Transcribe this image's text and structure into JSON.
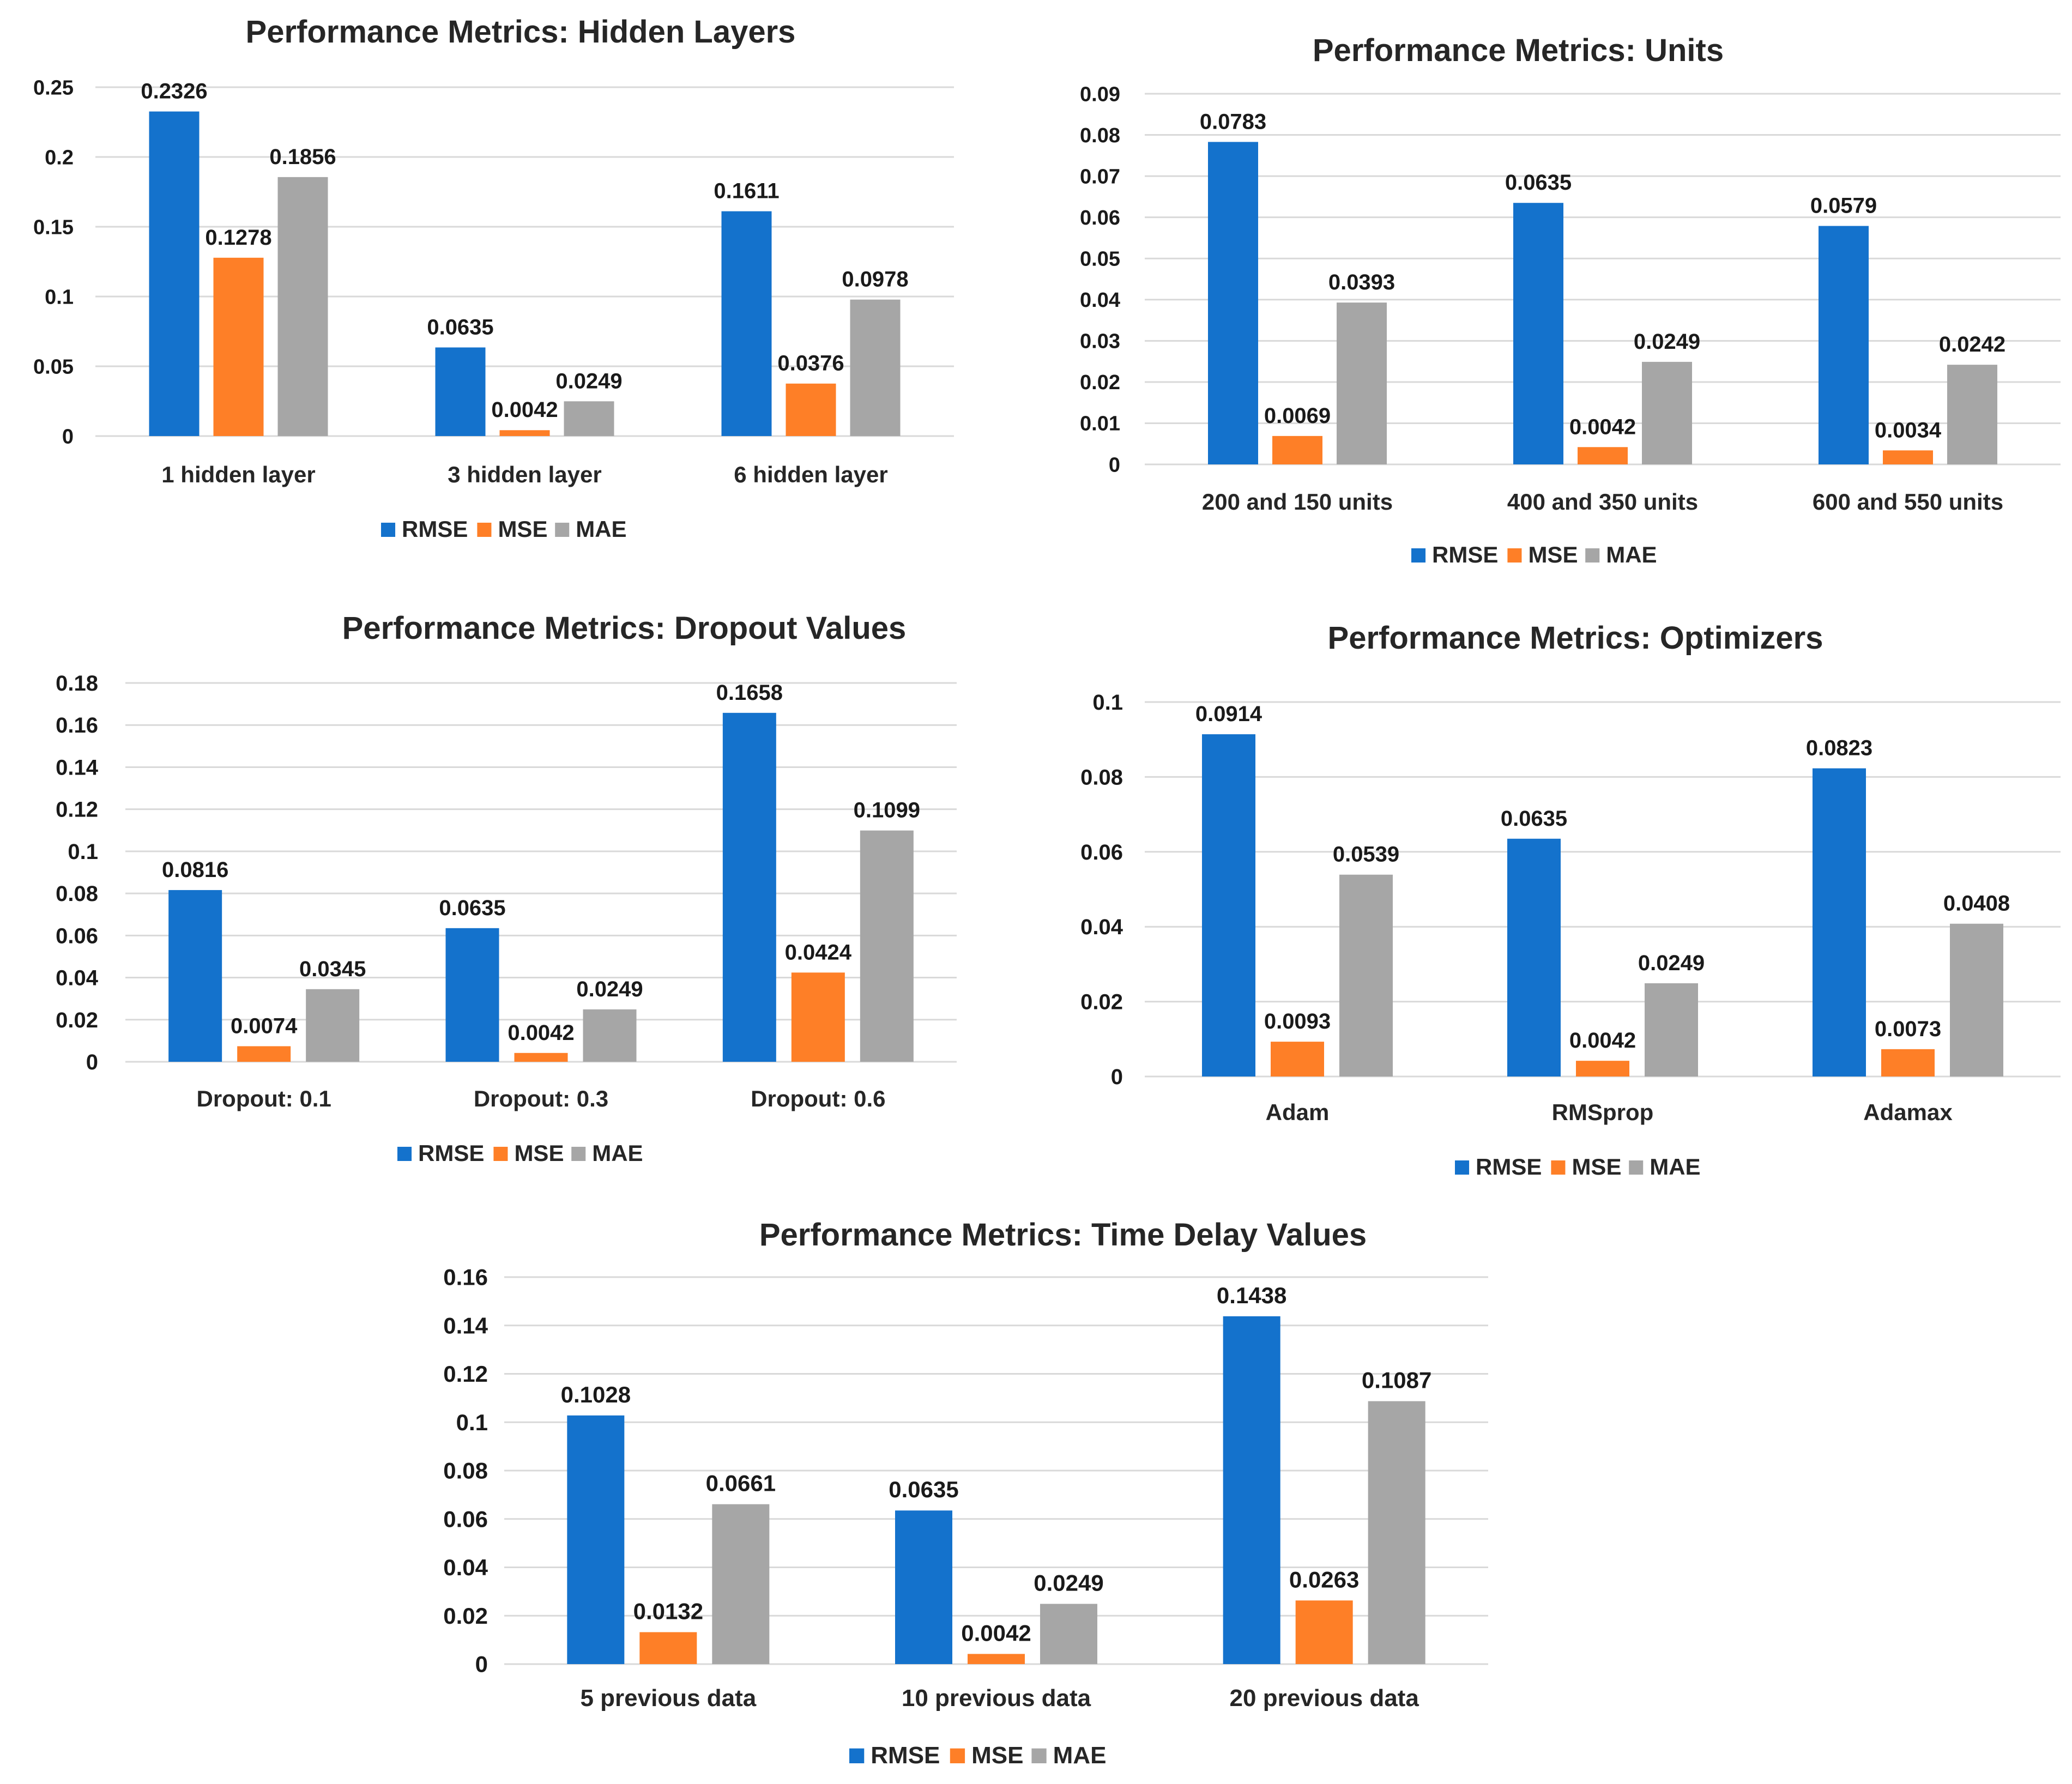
{
  "series_colors": {
    "RMSE": "#1472cc",
    "MSE": "#fe7f27",
    "MAE": "#a6a6a6"
  },
  "chart_data": [
    {
      "id": "hidden-layers",
      "type": "bar",
      "title": "Performance Metrics: Hidden Layers",
      "categories": [
        "1 hidden layer",
        "3 hidden layer",
        "6 hidden layer"
      ],
      "series": [
        {
          "name": "RMSE",
          "values": [
            0.2326,
            0.0635,
            0.1611
          ]
        },
        {
          "name": "MSE",
          "values": [
            0.1278,
            0.0042,
            0.0376
          ]
        },
        {
          "name": "MAE",
          "values": [
            0.1856,
            0.0249,
            0.0978
          ]
        }
      ],
      "value_labels": {
        "RMSE": [
          "0.2326",
          "0.0635",
          "0.1611"
        ],
        "MSE": [
          "0.1278",
          "0.0042",
          "0.0376"
        ],
        "MAE": [
          "0.1856",
          "0.0249",
          "0.0978"
        ]
      },
      "ylim": [
        0,
        0.25
      ],
      "yticks": [
        0,
        0.05,
        0.1,
        0.15,
        0.2,
        0.25
      ],
      "ytick_labels": [
        "0",
        "0.05",
        "0.1",
        "0.15",
        "0.2",
        "0.25"
      ],
      "xlabel": "",
      "ylabel": "",
      "grid": true,
      "legend": "bottom-center"
    },
    {
      "id": "units",
      "type": "bar",
      "title": "Performance Metrics: Units",
      "categories": [
        "200 and 150 units",
        "400 and 350 units",
        "600 and 550 units"
      ],
      "series": [
        {
          "name": "RMSE",
          "values": [
            0.0783,
            0.0635,
            0.0579
          ]
        },
        {
          "name": "MSE",
          "values": [
            0.0069,
            0.0042,
            0.0034
          ]
        },
        {
          "name": "MAE",
          "values": [
            0.0393,
            0.0249,
            0.0242
          ]
        }
      ],
      "value_labels": {
        "RMSE": [
          "0.0783",
          "0.0635",
          "0.0579"
        ],
        "MSE": [
          "0.0069",
          "0.0042",
          "0.0034"
        ],
        "MAE": [
          "0.0393",
          "0.0249",
          "0.0242"
        ]
      },
      "ylim": [
        0,
        0.09
      ],
      "yticks": [
        0,
        0.01,
        0.02,
        0.03,
        0.04,
        0.05,
        0.06,
        0.07,
        0.08,
        0.09
      ],
      "ytick_labels": [
        "0",
        "0.01",
        "0.02",
        "0.03",
        "0.04",
        "0.05",
        "0.06",
        "0.07",
        "0.08",
        "0.09"
      ],
      "xlabel": "",
      "ylabel": "",
      "grid": true,
      "legend": "bottom-center"
    },
    {
      "id": "dropout",
      "type": "bar",
      "title": "Performance Metrics: Dropout Values",
      "categories": [
        "Dropout: 0.1",
        "Dropout: 0.3",
        "Dropout: 0.6"
      ],
      "series": [
        {
          "name": "RMSE",
          "values": [
            0.0816,
            0.0635,
            0.1658
          ]
        },
        {
          "name": "MSE",
          "values": [
            0.0074,
            0.0042,
            0.0424
          ]
        },
        {
          "name": "MAE",
          "values": [
            0.0345,
            0.0249,
            0.1099
          ]
        }
      ],
      "value_labels": {
        "RMSE": [
          "0.0816",
          "0.0635",
          "0.1658"
        ],
        "MSE": [
          "0.0074",
          "0.0042",
          "0.0424"
        ],
        "MAE": [
          "0.0345",
          "0.0249",
          "0.1099"
        ]
      },
      "ylim": [
        0,
        0.18
      ],
      "yticks": [
        0,
        0.02,
        0.04,
        0.06,
        0.08,
        0.1,
        0.12,
        0.14,
        0.16,
        0.18
      ],
      "ytick_labels": [
        "0",
        "0.02",
        "0.04",
        "0.06",
        "0.08",
        "0.1",
        "0.12",
        "0.14",
        "0.16",
        "0.18"
      ],
      "xlabel": "",
      "ylabel": "",
      "grid": true,
      "legend": "bottom-center"
    },
    {
      "id": "optimizers",
      "type": "bar",
      "title": "Performance Metrics: Optimizers",
      "categories": [
        "Adam",
        "RMSprop",
        "Adamax"
      ],
      "series": [
        {
          "name": "RMSE",
          "values": [
            0.0914,
            0.0635,
            0.0823
          ]
        },
        {
          "name": "MSE",
          "values": [
            0.0093,
            0.0042,
            0.0073
          ]
        },
        {
          "name": "MAE",
          "values": [
            0.0539,
            0.0249,
            0.0408
          ]
        }
      ],
      "value_labels": {
        "RMSE": [
          "0.0914",
          "0.0635",
          "0.0823"
        ],
        "MSE": [
          "0.0093",
          "0.0042",
          "0.0073"
        ],
        "MAE": [
          "0.0539",
          "0.0249",
          "0.0408"
        ]
      },
      "ylim": [
        0,
        0.1
      ],
      "yticks": [
        0,
        0.02,
        0.04,
        0.06,
        0.08,
        0.1
      ],
      "ytick_labels": [
        "0",
        "0.02",
        "0.04",
        "0.06",
        "0.08",
        "0.1"
      ],
      "xlabel": "",
      "ylabel": "",
      "grid": true,
      "legend": "bottom-center"
    },
    {
      "id": "time-delay",
      "type": "bar",
      "title": "Performance Metrics: Time Delay Values",
      "categories": [
        "5 previous data",
        "10 previous data",
        "20 previous data"
      ],
      "series": [
        {
          "name": "RMSE",
          "values": [
            0.1028,
            0.0635,
            0.1438
          ]
        },
        {
          "name": "MSE",
          "values": [
            0.0132,
            0.0042,
            0.0263
          ]
        },
        {
          "name": "MAE",
          "values": [
            0.0661,
            0.0249,
            0.1087
          ]
        }
      ],
      "value_labels": {
        "RMSE": [
          "0.1028",
          "0.0635",
          "0.1438"
        ],
        "MSE": [
          "0.0132",
          "0.0042",
          "0.0263"
        ],
        "MAE": [
          "0.0661",
          "0.0249",
          "0.1087"
        ]
      },
      "ylim": [
        0,
        0.16
      ],
      "yticks": [
        0,
        0.02,
        0.04,
        0.06,
        0.08,
        0.1,
        0.12,
        0.14,
        0.16
      ],
      "ytick_labels": [
        "0",
        "0.02",
        "0.04",
        "0.06",
        "0.08",
        "0.1",
        "0.12",
        "0.14",
        "0.16"
      ],
      "xlabel": "",
      "ylabel": "",
      "grid": true,
      "legend": "bottom-center"
    }
  ]
}
